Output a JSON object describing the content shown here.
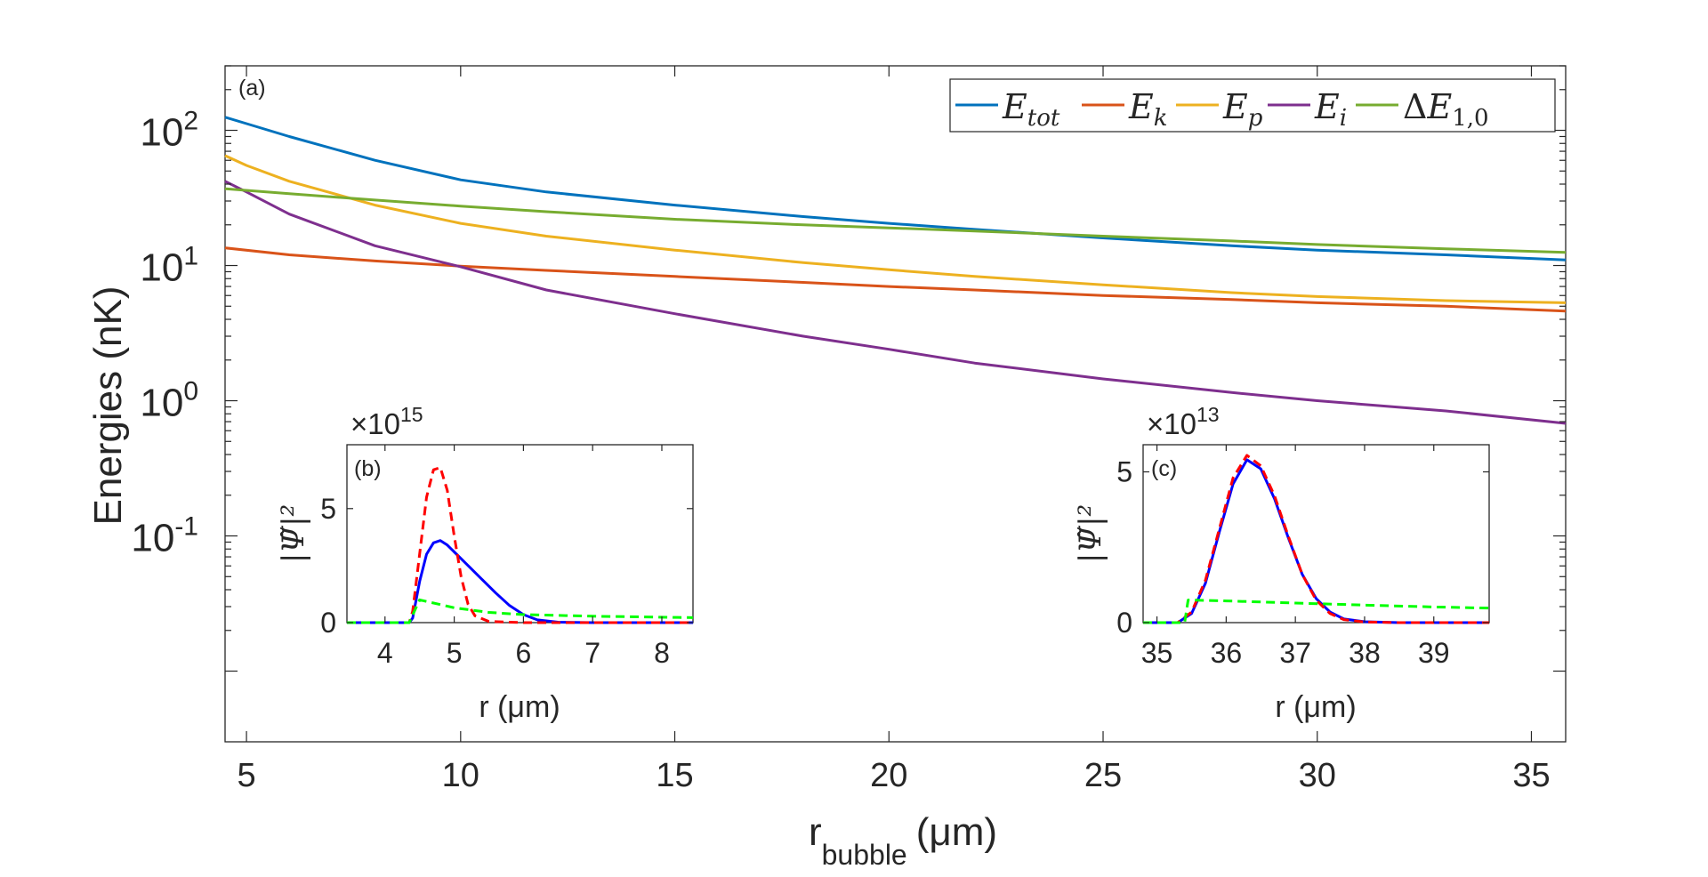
{
  "chart_data": [
    {
      "panel": "(a)",
      "type": "line",
      "yscale": "log",
      "xlabel_main": "r",
      "xlabel_sub": "bubble",
      "xlabel_unit": "(μm)",
      "ylabel": "Energies (nK)",
      "xlim": [
        4.5,
        35.8
      ],
      "ylim": [
        0.003,
        300
      ],
      "xticks": [
        5,
        10,
        15,
        20,
        25,
        30,
        35
      ],
      "ytick_labels": [
        {
          "base": "10",
          "exp": "2",
          "value": 100
        },
        {
          "base": "10",
          "exp": "1",
          "value": 10
        },
        {
          "base": "10",
          "exp": "0",
          "value": 1
        },
        {
          "base": "10",
          "exp": "-1",
          "value": 0.1
        }
      ],
      "legend_position": "top-right",
      "series": [
        {
          "name": "E_tot",
          "color": "#0072BD",
          "x": [
            4.5,
            5,
            6,
            8,
            10,
            12,
            15,
            18,
            20,
            22,
            25,
            28,
            30,
            33,
            35.8
          ],
          "y": [
            125,
            112,
            90,
            60,
            43,
            35,
            28,
            23,
            20.5,
            18.5,
            16,
            14,
            13,
            12,
            11
          ]
        },
        {
          "name": "E_k",
          "color": "#D95319",
          "x": [
            4.5,
            6,
            8,
            10,
            12,
            15,
            18,
            20,
            22,
            25,
            28,
            30,
            33,
            35.8
          ],
          "y": [
            13.5,
            12,
            10.8,
            9.9,
            9.2,
            8.3,
            7.5,
            7.0,
            6.6,
            6.0,
            5.6,
            5.3,
            5.0,
            4.6
          ]
        },
        {
          "name": "E_p",
          "color": "#EDB120",
          "x": [
            4.5,
            5,
            6,
            8,
            10,
            12,
            15,
            18,
            20,
            22,
            25,
            28,
            30,
            33,
            35.8
          ],
          "y": [
            65,
            55,
            42,
            28,
            20.5,
            16.5,
            13,
            10.5,
            9.3,
            8.3,
            7.2,
            6.3,
            5.9,
            5.5,
            5.3
          ]
        },
        {
          "name": "E_i",
          "color": "#7E2F8E",
          "x": [
            4.5,
            5,
            6,
            8,
            10,
            12,
            15,
            18,
            20,
            22,
            25,
            28,
            30,
            33,
            35.8
          ],
          "y": [
            42,
            35,
            24,
            14,
            9.8,
            6.6,
            4.4,
            3.0,
            2.4,
            1.9,
            1.45,
            1.15,
            1.0,
            0.84,
            0.68
          ]
        },
        {
          "name": "ΔE_1,0",
          "color": "#77AC30",
          "x": [
            4.5,
            6,
            8,
            10,
            12,
            15,
            18,
            20,
            22,
            25,
            28,
            30,
            33,
            35.8
          ],
          "y": [
            37,
            34,
            30.5,
            27.5,
            25,
            22,
            20,
            19,
            18,
            16.5,
            15.2,
            14.3,
            13.3,
            12.5
          ]
        }
      ]
    },
    {
      "panel": "(b)",
      "type": "line",
      "xlabel": "r (μm)",
      "ylabel": "|Ψ̃|²",
      "multiplier_base": "×10",
      "multiplier_exp": "15",
      "xlim": [
        3.45,
        8.45
      ],
      "ylim": [
        0,
        7.8
      ],
      "xticks": [
        4,
        5,
        6,
        7,
        8
      ],
      "yticks": [
        0,
        5
      ],
      "series": [
        {
          "name": "solid",
          "color": "#0000FF",
          "style": "solid",
          "x": [
            3.45,
            4.35,
            4.4,
            4.5,
            4.6,
            4.7,
            4.8,
            4.9,
            5.0,
            5.2,
            5.4,
            5.6,
            5.8,
            6.0,
            6.2,
            6.5,
            7.0,
            8.45
          ],
          "y": [
            0,
            0,
            0.2,
            1.8,
            3.0,
            3.5,
            3.6,
            3.4,
            3.1,
            2.5,
            1.9,
            1.3,
            0.75,
            0.35,
            0.12,
            0.02,
            0,
            0
          ]
        },
        {
          "name": "dashed-red",
          "color": "#FF0000",
          "style": "dashed",
          "x": [
            3.45,
            4.35,
            4.4,
            4.5,
            4.6,
            4.7,
            4.8,
            4.9,
            5.0,
            5.1,
            5.2,
            5.3,
            5.5,
            6.0,
            8.45
          ],
          "y": [
            0,
            0,
            0.5,
            3.0,
            5.5,
            6.7,
            6.8,
            5.8,
            3.8,
            2.0,
            0.8,
            0.3,
            0.05,
            0,
            0
          ]
        },
        {
          "name": "dashed-green",
          "color": "#00FF00",
          "style": "dashed",
          "x": [
            3.45,
            4.35,
            4.5,
            5.0,
            5.5,
            6.0,
            7.0,
            8.45
          ],
          "y": [
            0,
            0,
            1.0,
            0.65,
            0.45,
            0.35,
            0.28,
            0.22
          ]
        }
      ]
    },
    {
      "panel": "(c)",
      "type": "line",
      "xlabel": "r (μm)",
      "ylabel": "|Ψ̃|²",
      "multiplier_base": "×10",
      "multiplier_exp": "13",
      "xlim": [
        34.8,
        39.8
      ],
      "ylim": [
        0,
        5.9
      ],
      "xticks": [
        35,
        36,
        37,
        38,
        39
      ],
      "yticks": [
        0,
        5
      ],
      "series": [
        {
          "name": "solid",
          "color": "#0000FF",
          "style": "solid",
          "x": [
            34.8,
            35.3,
            35.5,
            35.7,
            35.9,
            36.1,
            36.3,
            36.5,
            36.7,
            36.9,
            37.1,
            37.3,
            37.5,
            37.7,
            38.0,
            38.5,
            39.8
          ],
          "y": [
            0,
            0,
            0.3,
            1.3,
            3.0,
            4.6,
            5.4,
            5.1,
            4.1,
            2.8,
            1.6,
            0.8,
            0.35,
            0.12,
            0.03,
            0,
            0
          ]
        },
        {
          "name": "dashed-red",
          "color": "#FF0000",
          "style": "dashed",
          "x": [
            34.8,
            35.3,
            35.5,
            35.7,
            35.9,
            36.1,
            36.3,
            36.5,
            36.7,
            36.9,
            37.1,
            37.3,
            37.5,
            37.7,
            38.0,
            38.5,
            39.8
          ],
          "y": [
            0,
            0,
            0.35,
            1.4,
            3.1,
            4.8,
            5.55,
            5.2,
            4.2,
            2.85,
            1.6,
            0.75,
            0.3,
            0.1,
            0.02,
            0,
            0
          ]
        },
        {
          "name": "dashed-green",
          "color": "#00FF00",
          "style": "dashed",
          "x": [
            34.8,
            35.4,
            35.45,
            36.0,
            37.0,
            38.0,
            39.0,
            39.8
          ],
          "y": [
            0,
            0,
            0.75,
            0.72,
            0.65,
            0.58,
            0.52,
            0.48
          ]
        }
      ]
    }
  ]
}
